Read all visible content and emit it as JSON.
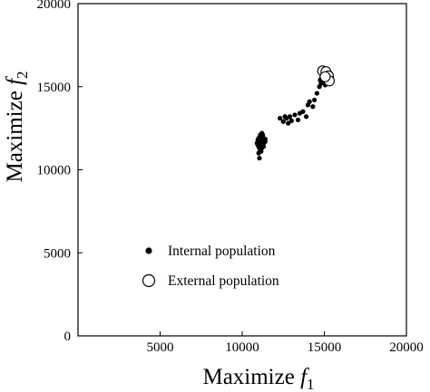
{
  "chart_data": {
    "type": "scatter",
    "title": "",
    "xlabel": {
      "text": "Maximize ",
      "var": "f",
      "sub": "1"
    },
    "ylabel": {
      "text": "Maximize ",
      "var": "f",
      "sub": "2"
    },
    "xlim": [
      0,
      20000
    ],
    "ylim": [
      0,
      20000
    ],
    "xticks": [
      5000,
      10000,
      15000,
      20000
    ],
    "yticks": [
      0,
      5000,
      10000,
      15000,
      20000
    ],
    "xtick_labels": [
      "5000",
      "10000",
      "15000",
      "20000"
    ],
    "ytick_labels": [
      "0",
      "5000",
      "10000",
      "15000",
      "20000"
    ],
    "grid": false,
    "legend": "lower-left",
    "series": [
      {
        "name": "Internal population",
        "marker": "filled-circle",
        "color": "#000000",
        "x": [
          10900,
          10950,
          11000,
          11050,
          11100,
          11150,
          11200,
          11250,
          11300,
          11350,
          11400,
          11000,
          11100,
          11200,
          11300,
          11050,
          11150,
          11250,
          10950,
          11350,
          11200,
          11100,
          11000,
          11300,
          11150,
          11250,
          11050,
          11400,
          12300,
          12500,
          12700,
          12900,
          13000,
          13200,
          13400,
          12600,
          12800,
          13500,
          13700,
          13900,
          14000,
          14100,
          14300,
          14400,
          14550,
          14700,
          14750,
          14800,
          14850,
          14900,
          14950,
          15000,
          15050,
          15100,
          15150,
          14800,
          14900,
          15000
        ],
        "y": [
          11600,
          11800,
          11400,
          11700,
          12000,
          11500,
          11900,
          12100,
          11600,
          11800,
          11700,
          11000,
          11200,
          11300,
          11900,
          10700,
          11100,
          11600,
          11500,
          11650,
          12200,
          12100,
          11900,
          11400,
          11800,
          11700,
          11300,
          11850,
          13100,
          12900,
          13100,
          13200,
          12950,
          13300,
          13000,
          13200,
          12800,
          13400,
          13500,
          13200,
          13900,
          14100,
          13800,
          14200,
          14600,
          15000,
          15400,
          15200,
          15600,
          15300,
          15500,
          15700,
          15100,
          15800,
          15600,
          15450,
          15650,
          15850
        ]
      },
      {
        "name": "External population",
        "marker": "open-circle",
        "color": "#000000",
        "x": [
          14900,
          15100,
          15250,
          15300,
          15050
        ],
        "y": [
          15950,
          15900,
          15650,
          15350,
          15600
        ]
      }
    ]
  }
}
